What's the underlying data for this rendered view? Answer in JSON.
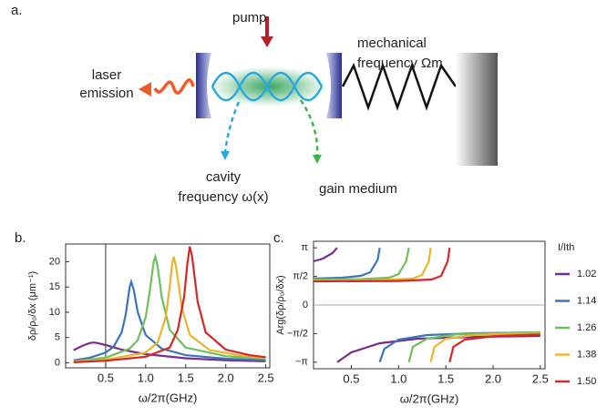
{
  "diagram": {
    "panel_label": "a.",
    "pump": "pump",
    "mechanical": "mechanical",
    "mechanical_frequency": "frequency Ωm",
    "laser": "laser",
    "emission": "emission",
    "cavity": "cavity",
    "cavity_frequency": "frequency ω(x)",
    "gain": "gain medium"
  },
  "chart_data": [
    {
      "type": "line",
      "panel_label": "b.",
      "x_label": "ω/2π(GHz)",
      "y_label": "δρ/ρ₀/δx (μm⁻¹)",
      "xlim": [
        0,
        2.55
      ],
      "ylim": [
        -1,
        23.5
      ],
      "xticks": [
        0.5,
        {
          "value": 1,
          "label": "1.0"
        },
        1.5,
        {
          "value": 2,
          "label": "2.0"
        },
        2.5
      ],
      "yticks": [
        0,
        5,
        10,
        15,
        20
      ],
      "vline": 0.5,
      "series": [
        {
          "name": "1.02",
          "color": "#7b2d8e",
          "x": [
            0.1,
            0.2,
            0.3,
            0.35,
            0.4,
            0.5,
            0.7,
            1.0,
            1.5,
            2.0,
            2.5
          ],
          "values": [
            2.5,
            3.3,
            3.9,
            4.0,
            3.9,
            3.5,
            2.6,
            1.7,
            0.9,
            0.5,
            0.3
          ]
        },
        {
          "name": "1.14",
          "color": "#3a75b8",
          "x": [
            0.1,
            0.3,
            0.5,
            0.6,
            0.7,
            0.75,
            0.8,
            0.82,
            0.85,
            0.9,
            1.0,
            1.2,
            1.5,
            2.0,
            2.5
          ],
          "values": [
            0.5,
            1.0,
            2.0,
            3.2,
            6.0,
            9.5,
            15.0,
            16.0,
            14.5,
            10.0,
            5.5,
            2.8,
            1.5,
            0.8,
            0.5
          ]
        },
        {
          "name": "1.26",
          "color": "#6fbf5a",
          "x": [
            0.1,
            0.5,
            0.8,
            0.9,
            1.0,
            1.05,
            1.1,
            1.12,
            1.15,
            1.2,
            1.3,
            1.5,
            2.0,
            2.5
          ],
          "values": [
            0.3,
            1.0,
            2.8,
            4.5,
            9.0,
            14.0,
            20.0,
            21.0,
            19.0,
            13.0,
            6.5,
            3.0,
            1.3,
            0.8
          ]
        },
        {
          "name": "1.38",
          "color": "#e8b530",
          "x": [
            0.1,
            0.5,
            1.0,
            1.15,
            1.25,
            1.3,
            1.33,
            1.35,
            1.38,
            1.45,
            1.55,
            1.8,
            2.2,
            2.5
          ],
          "values": [
            0.2,
            0.6,
            2.0,
            4.0,
            9.0,
            15.0,
            19.5,
            21.0,
            19.0,
            11.0,
            5.5,
            2.5,
            1.4,
            1.0
          ]
        },
        {
          "name": "1.50",
          "color": "#d62728",
          "x": [
            0.1,
            0.5,
            1.0,
            1.3,
            1.4,
            1.48,
            1.52,
            1.55,
            1.58,
            1.65,
            1.75,
            2.0,
            2.3,
            2.5
          ],
          "values": [
            0.1,
            0.4,
            1.2,
            3.0,
            6.5,
            13.0,
            19.5,
            23.0,
            21.0,
            12.0,
            6.0,
            2.6,
            1.5,
            1.1
          ]
        }
      ]
    },
    {
      "type": "line",
      "panel_label": "c.",
      "x_label": "ω/2π(GHz)",
      "y_label": "Arg(δρ/ρ₀/δx)",
      "legend_title": "I/Ith",
      "xlim": [
        0.1,
        2.55
      ],
      "ylim": [
        -3.5,
        3.5
      ],
      "xticks": [
        0.5,
        {
          "value": 1,
          "label": "1.0"
        },
        1.5,
        {
          "value": 2,
          "label": "2.0"
        },
        2.5
      ],
      "yticks": [
        {
          "value": 3.1416,
          "label": "π"
        },
        {
          "value": 1.5708,
          "label": "π/2"
        },
        0,
        {
          "value": -1.5708,
          "label": "−π/2"
        },
        {
          "value": -3.1416,
          "label": "−π"
        }
      ],
      "hline": 0,
      "series": [
        {
          "name": "1.02",
          "color": "#7b2d8e",
          "x": [
            0.1,
            0.2,
            0.3,
            0.35,
            null,
            0.35,
            0.5,
            0.8,
            1.2,
            1.8,
            2.5
          ],
          "values": [
            2.4,
            2.55,
            2.85,
            3.14,
            null,
            -3.14,
            -2.6,
            -2.1,
            -1.85,
            -1.75,
            -1.7
          ]
        },
        {
          "name": "1.14",
          "color": "#3a75b8",
          "x": [
            0.1,
            0.4,
            0.6,
            0.7,
            0.78,
            0.8,
            null,
            0.8,
            0.85,
            1.0,
            1.3,
            1.8,
            2.5
          ],
          "values": [
            1.45,
            1.5,
            1.6,
            1.8,
            2.5,
            3.14,
            null,
            -3.14,
            -2.4,
            -1.9,
            -1.65,
            -1.55,
            -1.5
          ]
        },
        {
          "name": "1.26",
          "color": "#6fbf5a",
          "x": [
            0.1,
            0.6,
            0.9,
            1.0,
            1.08,
            1.11,
            null,
            1.11,
            1.15,
            1.3,
            1.6,
            2.0,
            2.5
          ],
          "values": [
            1.4,
            1.42,
            1.5,
            1.7,
            2.4,
            3.14,
            null,
            -3.14,
            -2.3,
            -1.85,
            -1.62,
            -1.55,
            -1.5
          ]
        },
        {
          "name": "1.38",
          "color": "#e8b530",
          "x": [
            0.1,
            0.8,
            1.15,
            1.25,
            1.32,
            1.34,
            null,
            1.34,
            1.38,
            1.5,
            1.8,
            2.2,
            2.5
          ],
          "values": [
            1.35,
            1.37,
            1.45,
            1.65,
            2.4,
            3.14,
            null,
            -3.14,
            -2.3,
            -1.85,
            -1.65,
            -1.58,
            -1.55
          ]
        },
        {
          "name": "1.50",
          "color": "#d62728",
          "x": [
            0.1,
            1.0,
            1.35,
            1.45,
            1.52,
            1.54,
            null,
            1.54,
            1.58,
            1.7,
            2.0,
            2.3,
            2.5
          ],
          "values": [
            1.3,
            1.32,
            1.4,
            1.6,
            2.4,
            3.14,
            null,
            -3.14,
            -2.3,
            -1.9,
            -1.72,
            -1.65,
            -1.62
          ]
        }
      ]
    }
  ]
}
